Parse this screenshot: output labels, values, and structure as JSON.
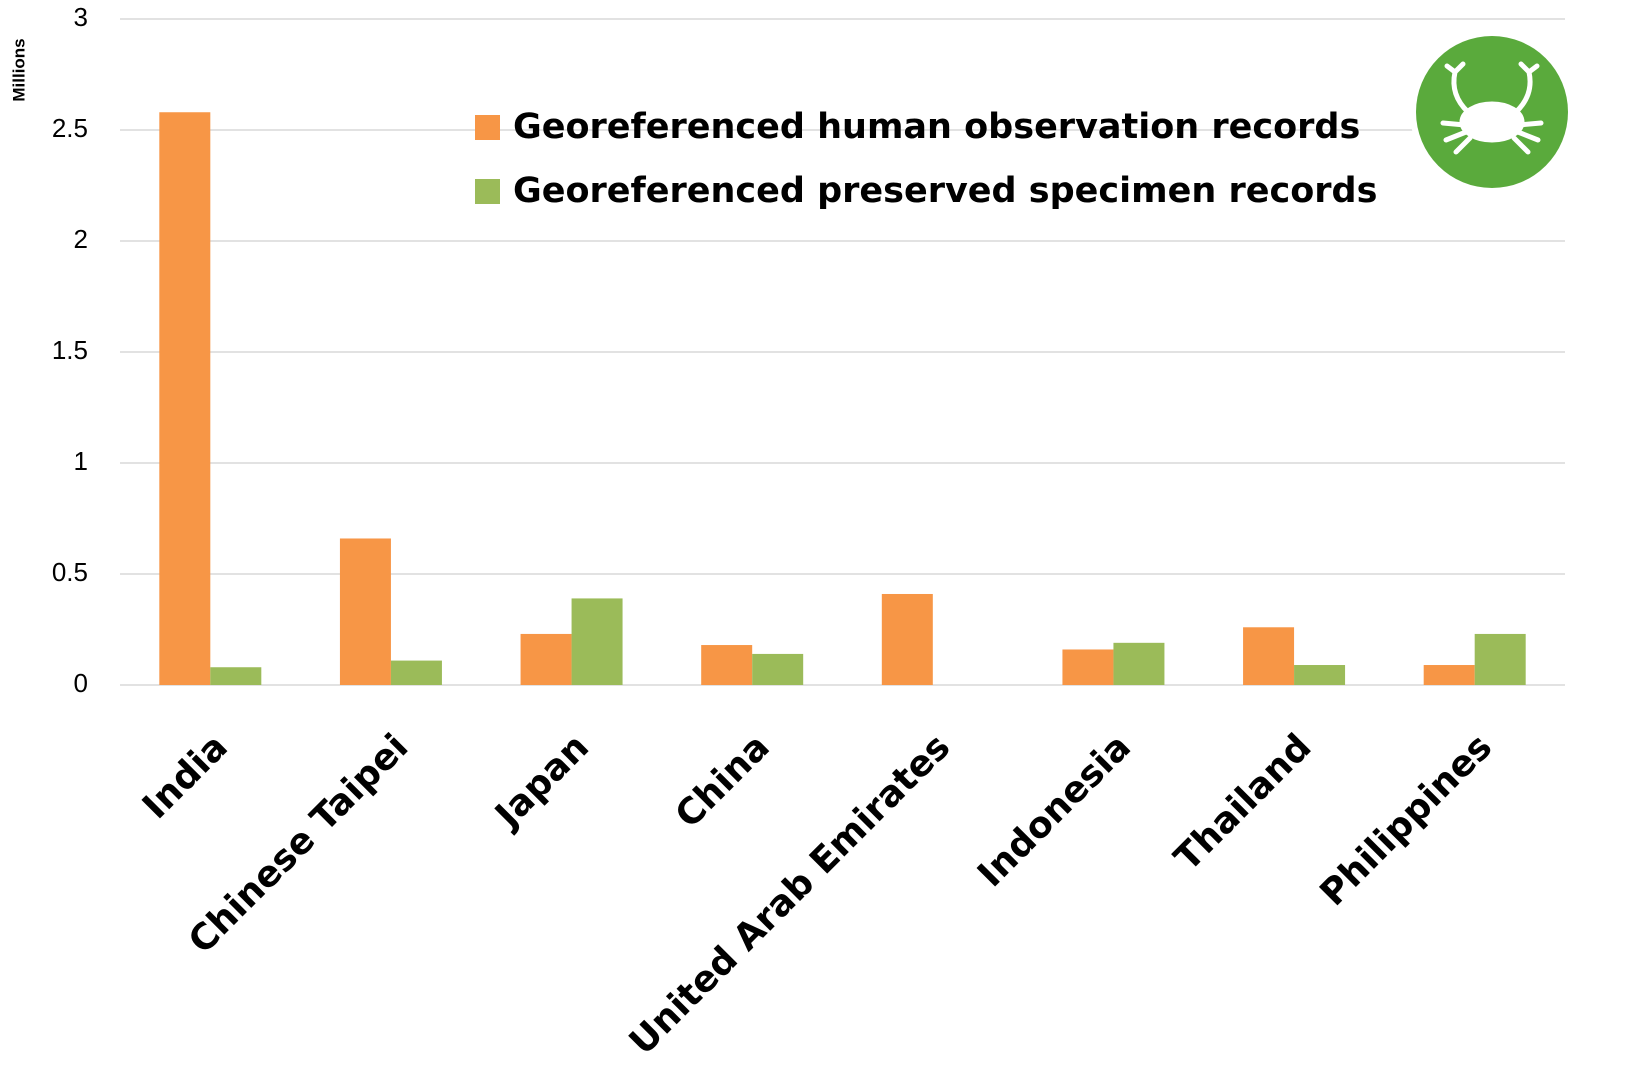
{
  "chart_data": {
    "type": "bar",
    "y_axis_label": "Millions",
    "categories": [
      "India",
      "Chinese Taipei",
      "Japan",
      "China",
      "United Arab Emirates",
      "Indonesia",
      "Thailand",
      "Philippines"
    ],
    "series": [
      {
        "name": "Georeferenced human observation records",
        "color": "#f79646",
        "values": [
          2.58,
          0.66,
          0.23,
          0.18,
          0.41,
          0.16,
          0.26,
          0.09
        ]
      },
      {
        "name": "Georeferenced preserved specimen records",
        "color": "#9bbb59",
        "values": [
          0.08,
          0.11,
          0.39,
          0.14,
          0,
          0.19,
          0.09,
          0.23
        ]
      }
    ],
    "ylim": [
      0,
      3
    ],
    "yticks": [
      0,
      0.5,
      1,
      1.5,
      2,
      2.5,
      3
    ],
    "grid": true
  }
}
